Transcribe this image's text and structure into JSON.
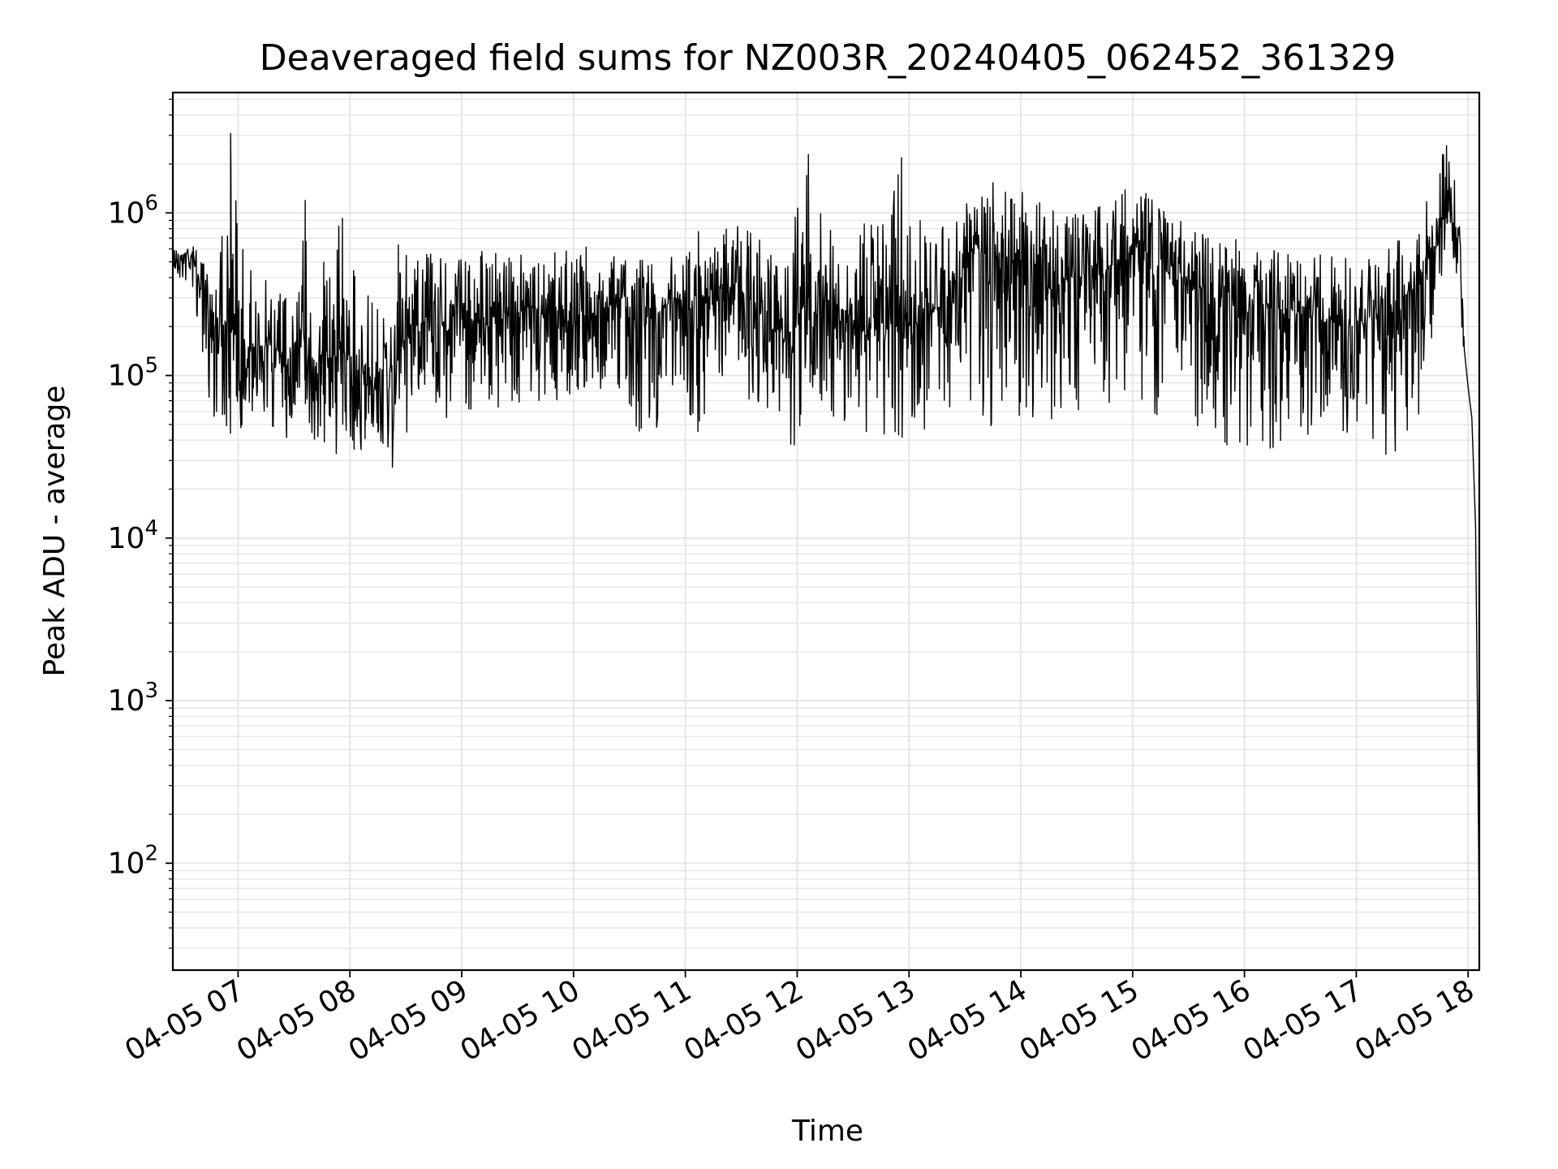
{
  "chart_data": {
    "type": "line",
    "title": "Deaveraged field sums for NZ003R_20240405_062452_361329",
    "xlabel": "Time",
    "ylabel": "Peak ADU - average",
    "yscale": "log",
    "ylim": [
      22,
      5500000
    ],
    "xlim": [
      "2024-04-05 06:25",
      "2024-04-05 18:06"
    ],
    "x_ticks": [
      "2024-04-05 07:00",
      "2024-04-05 08:00",
      "2024-04-05 09:00",
      "2024-04-05 10:00",
      "2024-04-05 11:00",
      "2024-04-05 12:00",
      "2024-04-05 13:00",
      "2024-04-05 14:00",
      "2024-04-05 15:00",
      "2024-04-05 16:00",
      "2024-04-05 17:00",
      "2024-04-05 18:00"
    ],
    "x_tick_labels": [
      "04-05 07",
      "04-05 08",
      "04-05 09",
      "04-05 10",
      "04-05 11",
      "04-05 12",
      "04-05 13",
      "04-05 14",
      "04-05 15",
      "04-05 16",
      "04-05 17",
      "04-05 18"
    ],
    "y_ticks": [
      100,
      1000,
      10000,
      100000,
      1000000
    ],
    "y_tick_labels": [
      {
        "base": "10",
        "exp": "2"
      },
      {
        "base": "10",
        "exp": "3"
      },
      {
        "base": "10",
        "exp": "4"
      },
      {
        "base": "10",
        "exp": "5"
      },
      {
        "base": "10",
        "exp": "6"
      }
    ],
    "grid": true,
    "line_color": "#000000",
    "grid_color": "#e6e6e6",
    "series": [
      {
        "x": [
          "2024-04-05 06:25",
          "2024-04-05 06:35",
          "2024-04-05 06:45",
          "2024-04-05 06:55",
          "2024-04-05 07:05",
          "2024-04-05 07:15",
          "2024-04-05 07:25",
          "2024-04-05 07:35",
          "2024-04-05 07:45",
          "2024-04-05 07:55",
          "2024-04-05 08:05",
          "2024-04-05 08:15",
          "2024-04-05 08:25",
          "2024-04-05 08:35",
          "2024-04-05 08:45",
          "2024-04-05 08:55",
          "2024-04-05 09:05",
          "2024-04-05 09:15",
          "2024-04-05 09:25",
          "2024-04-05 09:35",
          "2024-04-05 09:45",
          "2024-04-05 09:55",
          "2024-04-05 10:05",
          "2024-04-05 10:15",
          "2024-04-05 10:25",
          "2024-04-05 10:35",
          "2024-04-05 10:45",
          "2024-04-05 10:55",
          "2024-04-05 11:05",
          "2024-04-05 11:15",
          "2024-04-05 11:25",
          "2024-04-05 11:35",
          "2024-04-05 11:45",
          "2024-04-05 11:55",
          "2024-04-05 12:05",
          "2024-04-05 12:15",
          "2024-04-05 12:25",
          "2024-04-05 12:35",
          "2024-04-05 12:45",
          "2024-04-05 12:55",
          "2024-04-05 13:05",
          "2024-04-05 13:15",
          "2024-04-05 13:25",
          "2024-04-05 13:35",
          "2024-04-05 13:45",
          "2024-04-05 13:55",
          "2024-04-05 14:05",
          "2024-04-05 14:15",
          "2024-04-05 14:25",
          "2024-04-05 14:35",
          "2024-04-05 14:45",
          "2024-04-05 14:55",
          "2024-04-05 15:05",
          "2024-04-05 15:15",
          "2024-04-05 15:25",
          "2024-04-05 15:35",
          "2024-04-05 15:45",
          "2024-04-05 15:55",
          "2024-04-05 16:05",
          "2024-04-05 16:15",
          "2024-04-05 16:25",
          "2024-04-05 16:35",
          "2024-04-05 16:45",
          "2024-04-05 16:55",
          "2024-04-05 17:05",
          "2024-04-05 17:15",
          "2024-04-05 17:25",
          "2024-04-05 17:35",
          "2024-04-05 17:45",
          "2024-04-05 17:50",
          "2024-04-05 17:55",
          "2024-04-05 17:58",
          "2024-04-05 18:00",
          "2024-04-05 18:02",
          "2024-04-05 18:04",
          "2024-04-05 18:05",
          "2024-04-05 18:06"
        ],
        "y": [
          500000,
          580000,
          220000,
          200000,
          140000,
          160000,
          130000,
          150000,
          110000,
          150000,
          90000,
          80000,
          130000,
          230000,
          210000,
          200000,
          240000,
          230000,
          220000,
          260000,
          230000,
          240000,
          230000,
          250000,
          300000,
          200000,
          240000,
          300000,
          250000,
          350000,
          320000,
          300000,
          200000,
          180000,
          220000,
          300000,
          260000,
          190000,
          210000,
          230000,
          200000,
          260000,
          280000,
          650000,
          500000,
          550000,
          520000,
          340000,
          380000,
          420000,
          430000,
          550000,
          600000,
          480000,
          380000,
          350000,
          300000,
          330000,
          290000,
          260000,
          250000,
          240000,
          210000,
          200000,
          210000,
          260000,
          300000,
          380000,
          800000,
          1050000,
          700000,
          180000,
          85000,
          55000,
          12000,
          900,
          40
        ],
        "max": [
          650000,
          700000,
          420000,
          3100000,
          560000,
          420000,
          360000,
          1200000,
          500000,
          930000,
          360000,
          310000,
          640000,
          560000,
          580000,
          600000,
          620000,
          620000,
          560000,
          580000,
          600000,
          620000,
          720000,
          470000,
          650000,
          620000,
          560000,
          650000,
          800000,
          720000,
          850000,
          800000,
          600000,
          550000,
          2300000,
          900000,
          880000,
          860000,
          850000,
          2200000,
          900000,
          850000,
          950000,
          1400000,
          1600000,
          1500000,
          1300000,
          1100000,
          1000000,
          1100000,
          1200000,
          1400000,
          1400000,
          1100000,
          900000,
          800000,
          750000,
          700000,
          650000,
          600000,
          550000,
          580000,
          560000,
          560000,
          600000,
          650000,
          700000,
          900000,
          2700000,
          2850000,
          1000000,
          250000,
          110000,
          70000,
          15000,
          1200,
          40
        ],
        "min": [
          400000,
          350000,
          60000,
          40000,
          50000,
          50000,
          38000,
          45000,
          35000,
          32000,
          30000,
          28000,
          24000,
          60000,
          55000,
          50000,
          60000,
          65000,
          60000,
          70000,
          60000,
          75000,
          70000,
          80000,
          75000,
          35000,
          45000,
          90000,
          40000,
          45000,
          70000,
          70000,
          50000,
          30000,
          40000,
          55000,
          50000,
          45000,
          40000,
          38000,
          45000,
          40000,
          50000,
          55000,
          48000,
          52000,
          55000,
          50000,
          60000,
          55000,
          50000,
          60000,
          65000,
          55000,
          50000,
          45000,
          38000,
          30000,
          38000,
          35000,
          40000,
          38000,
          42000,
          40000,
          45000,
          30000,
          35000,
          50000,
          300000,
          700000,
          300000,
          120000,
          60000,
          40000,
          8000,
          600,
          30
        ]
      }
    ]
  }
}
